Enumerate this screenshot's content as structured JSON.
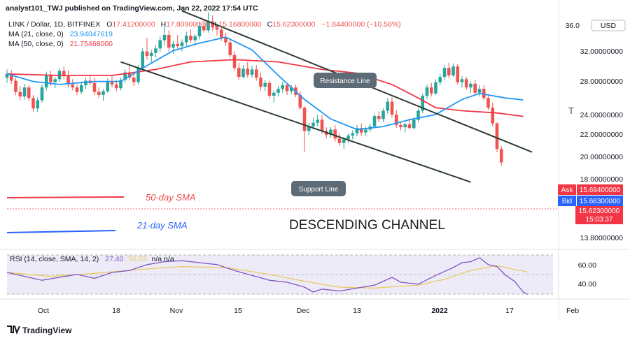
{
  "header": {
    "attribution": "analyst101_TWJ published on TradingView.com, Jan 22, 2022 17:54 UTC",
    "symbol": "LINK / Dollar, 1D, BITFINEX",
    "ohlc": [
      {
        "k": "O",
        "v": "17.41200000"
      },
      {
        "k": "H",
        "v": "17.80900000"
      },
      {
        "k": "L",
        "v": "15.16800000"
      },
      {
        "k": "C",
        "v": "15.62300000"
      },
      {
        "k": "",
        "v": "−1.84400000 (−10.56%)"
      }
    ],
    "ma21_label": "MA (21, close, 0)",
    "ma21_value": "23.94047619",
    "ma50_label": "MA (50, close, 0)",
    "ma50_value": "21.75468000"
  },
  "price_axis": {
    "currency": "USD",
    "top_tick": "36.0",
    "ticks": [
      "32.00000000",
      "28.00000000",
      "24.00000000",
      "22.00000000",
      "20.00000000",
      "18.00000000",
      "13.80000000"
    ]
  },
  "price_tags": {
    "ask_label": "Ask",
    "ask_value": "15.69400000",
    "bid_label": "Bid",
    "bid_value": "15.66300000",
    "last_value": "15.62300000",
    "countdown": "15:03:37"
  },
  "annotations": {
    "resistance": "Resistance Line",
    "support": "Support Line",
    "sma50": "50-day SMA",
    "sma21": "21-day SMA",
    "channel": "DESCENDING CHANNEL",
    "edge_text": "T"
  },
  "rsi": {
    "label": "RSI (14, close, SMA, 14, 2)",
    "value": "27.40",
    "value2": "50.53",
    "na": "n/a n/a",
    "ticks": [
      "60.00",
      "40.00"
    ]
  },
  "time_axis": [
    "Oct",
    "18",
    "Nov",
    "15",
    "Dec",
    "13",
    "2022",
    "17",
    "Feb"
  ],
  "footer": {
    "brand": "TradingView"
  },
  "colors": {
    "up": "#26a69a",
    "down": "#ef5350",
    "ma21": "#2196f3",
    "ma50": "#f23645",
    "rsi": "#7e57c2",
    "rsi_sma": "#e8c85a",
    "trendline": "#2e3d34",
    "tag_red": "#f23645",
    "tag_blue": "#2962ff"
  },
  "chart_data": [
    {
      "type": "candlestick",
      "title": "LINK / Dollar, 1D, BITFINEX",
      "ylim": [
        12.5,
        36.5
      ],
      "candles": [
        [
          26.9,
          28.0,
          26.2,
          27.4
        ],
        [
          27.4,
          27.9,
          26.1,
          26.5
        ],
        [
          26.5,
          26.9,
          24.6,
          25.0
        ],
        [
          25.0,
          25.8,
          23.9,
          24.4
        ],
        [
          24.4,
          26.1,
          24.0,
          25.6
        ],
        [
          25.6,
          25.9,
          23.8,
          24.2
        ],
        [
          24.2,
          24.6,
          22.4,
          22.8
        ],
        [
          22.8,
          24.3,
          22.3,
          23.9
        ],
        [
          23.9,
          26.0,
          23.6,
          25.6
        ],
        [
          25.6,
          27.7,
          25.2,
          27.2
        ],
        [
          27.2,
          27.8,
          25.8,
          26.3
        ],
        [
          26.3,
          27.0,
          25.5,
          26.7
        ],
        [
          26.7,
          28.2,
          26.3,
          27.8
        ],
        [
          27.8,
          28.4,
          26.7,
          27.1
        ],
        [
          27.1,
          27.9,
          25.6,
          26.0
        ],
        [
          26.0,
          26.7,
          25.2,
          25.6
        ],
        [
          25.6,
          26.0,
          24.6,
          25.0
        ],
        [
          25.0,
          26.3,
          24.7,
          25.9
        ],
        [
          25.9,
          26.9,
          25.4,
          26.5
        ],
        [
          26.5,
          27.2,
          25.9,
          26.2
        ],
        [
          26.2,
          26.9,
          24.6,
          25.0
        ],
        [
          25.0,
          25.6,
          24.2,
          24.6
        ],
        [
          24.6,
          25.4,
          23.8,
          25.1
        ],
        [
          25.1,
          26.8,
          24.9,
          26.4
        ],
        [
          26.4,
          27.2,
          25.6,
          26.0
        ],
        [
          26.0,
          26.6,
          25.1,
          25.5
        ],
        [
          25.5,
          26.9,
          25.2,
          26.6
        ],
        [
          26.6,
          28.0,
          26.2,
          27.6
        ],
        [
          27.6,
          28.4,
          26.6,
          26.9
        ],
        [
          26.9,
          27.6,
          25.8,
          26.3
        ],
        [
          26.3,
          28.6,
          26.0,
          28.2
        ],
        [
          28.2,
          30.8,
          27.9,
          30.4
        ],
        [
          30.4,
          32.2,
          29.3,
          29.8
        ],
        [
          29.8,
          30.6,
          28.8,
          30.2
        ],
        [
          30.2,
          31.2,
          29.6,
          30.8
        ],
        [
          30.8,
          32.4,
          30.3,
          31.9
        ],
        [
          31.9,
          33.8,
          31.2,
          32.6
        ],
        [
          32.6,
          33.2,
          30.4,
          30.9
        ],
        [
          30.9,
          31.8,
          30.1,
          31.4
        ],
        [
          31.4,
          32.6,
          30.8,
          31.1
        ],
        [
          31.1,
          32.0,
          30.4,
          31.6
        ],
        [
          31.6,
          33.0,
          31.1,
          32.5
        ],
        [
          32.5,
          33.3,
          31.6,
          31.9
        ],
        [
          31.9,
          32.7,
          31.2,
          32.4
        ],
        [
          32.4,
          34.3,
          32.0,
          33.8
        ],
        [
          33.8,
          34.6,
          32.9,
          33.2
        ],
        [
          33.2,
          35.6,
          32.9,
          34.4
        ],
        [
          34.4,
          35.2,
          33.1,
          33.6
        ],
        [
          33.6,
          34.1,
          32.5,
          33.3
        ],
        [
          33.3,
          33.8,
          31.8,
          32.2
        ],
        [
          32.2,
          32.9,
          31.1,
          31.6
        ],
        [
          31.6,
          32.0,
          29.6,
          29.9
        ],
        [
          29.9,
          30.4,
          27.8,
          28.2
        ],
        [
          28.2,
          28.9,
          26.6,
          27.0
        ],
        [
          27.0,
          28.6,
          26.8,
          28.1
        ],
        [
          28.1,
          29.0,
          26.9,
          27.3
        ],
        [
          27.3,
          28.5,
          26.9,
          28.0
        ],
        [
          28.0,
          28.6,
          26.5,
          26.9
        ],
        [
          26.9,
          27.6,
          25.2,
          25.7
        ],
        [
          25.7,
          26.6,
          25.1,
          26.2
        ],
        [
          26.2,
          26.5,
          24.1,
          24.5
        ],
        [
          24.5,
          25.2,
          23.6,
          24.9
        ],
        [
          24.9,
          25.8,
          24.4,
          25.4
        ],
        [
          25.4,
          26.4,
          24.9,
          25.9
        ],
        [
          25.9,
          26.2,
          24.6,
          25.1
        ],
        [
          25.1,
          25.9,
          24.7,
          25.6
        ],
        [
          25.6,
          26.0,
          24.3,
          24.6
        ],
        [
          24.6,
          25.1,
          22.6,
          22.9
        ],
        [
          22.9,
          23.1,
          17.0,
          19.8
        ],
        [
          19.8,
          20.9,
          19.3,
          20.4
        ],
        [
          20.4,
          21.6,
          20.0,
          20.9
        ],
        [
          20.9,
          22.0,
          20.4,
          21.3
        ],
        [
          21.3,
          21.9,
          19.4,
          19.8
        ],
        [
          19.8,
          20.3,
          18.8,
          19.3
        ],
        [
          19.3,
          20.3,
          18.9,
          20.0
        ],
        [
          20.0,
          20.6,
          18.4,
          18.8
        ],
        [
          18.8,
          19.5,
          17.8,
          18.2
        ],
        [
          18.2,
          19.0,
          17.4,
          18.7
        ],
        [
          18.7,
          19.5,
          18.2,
          19.2
        ],
        [
          19.2,
          19.9,
          18.7,
          19.5
        ],
        [
          19.5,
          20.6,
          19.1,
          20.2
        ],
        [
          20.2,
          20.8,
          19.2,
          19.6
        ],
        [
          19.6,
          20.4,
          19.2,
          20.0
        ],
        [
          20.0,
          20.8,
          19.7,
          20.4
        ],
        [
          20.4,
          22.1,
          20.2,
          21.8
        ],
        [
          21.8,
          22.4,
          21.0,
          21.4
        ],
        [
          21.4,
          22.8,
          21.0,
          22.5
        ],
        [
          22.5,
          24.2,
          22.1,
          23.7
        ],
        [
          23.7,
          24.3,
          21.6,
          22.0
        ],
        [
          22.0,
          22.6,
          20.2,
          20.6
        ],
        [
          20.6,
          21.1,
          19.9,
          20.3
        ],
        [
          20.3,
          20.9,
          19.6,
          20.7
        ],
        [
          20.7,
          21.5,
          20.0,
          20.2
        ],
        [
          20.2,
          21.6,
          20.0,
          21.3
        ],
        [
          21.3,
          22.8,
          21.0,
          22.5
        ],
        [
          22.5,
          24.8,
          22.2,
          24.5
        ],
        [
          24.5,
          26.0,
          24.1,
          25.6
        ],
        [
          25.6,
          26.2,
          24.4,
          24.8
        ],
        [
          24.8,
          26.7,
          24.6,
          26.3
        ],
        [
          26.3,
          27.4,
          25.9,
          27.0
        ],
        [
          27.0,
          28.6,
          26.6,
          28.2
        ],
        [
          28.2,
          28.9,
          26.8,
          27.2
        ],
        [
          27.2,
          28.8,
          27.0,
          28.4
        ],
        [
          28.4,
          28.7,
          26.0,
          26.3
        ],
        [
          26.3,
          27.1,
          25.6,
          26.7
        ],
        [
          26.7,
          27.0,
          25.3,
          25.6
        ],
        [
          25.6,
          26.4,
          24.9,
          26.1
        ],
        [
          26.1,
          26.6,
          24.6,
          24.9
        ],
        [
          24.9,
          25.9,
          24.4,
          25.4
        ],
        [
          25.4,
          25.9,
          23.9,
          24.2
        ],
        [
          24.2,
          24.7,
          22.6,
          22.9
        ],
        [
          22.9,
          23.6,
          20.4,
          20.8
        ],
        [
          20.8,
          21.0,
          17.0,
          17.41
        ],
        [
          17.41,
          17.81,
          15.17,
          15.62
        ]
      ],
      "ma21": [
        [
          0,
          27.4
        ],
        [
          6,
          26.4
        ],
        [
          12,
          26.0
        ],
        [
          20,
          26.4
        ],
        [
          26,
          26.4
        ],
        [
          32,
          28.5
        ],
        [
          38,
          30.5
        ],
        [
          44,
          31.5
        ],
        [
          50,
          32.3
        ],
        [
          56,
          30.6
        ],
        [
          62,
          27.2
        ],
        [
          68,
          24.0
        ],
        [
          74,
          21.4
        ],
        [
          80,
          20.0
        ],
        [
          86,
          20.4
        ],
        [
          92,
          21.3
        ],
        [
          98,
          22.0
        ],
        [
          104,
          24.0
        ],
        [
          108,
          24.8
        ],
        [
          114,
          24.2
        ],
        [
          118,
          23.94
        ]
      ],
      "ma50": [
        [
          0,
          27.4
        ],
        [
          12,
          27.2
        ],
        [
          24,
          27.2
        ],
        [
          34,
          28.0
        ],
        [
          42,
          29.0
        ],
        [
          52,
          29.3
        ],
        [
          62,
          29.0
        ],
        [
          72,
          28.0
        ],
        [
          80,
          27.5
        ],
        [
          88,
          26.0
        ],
        [
          94,
          24.2
        ],
        [
          98,
          22.9
        ],
        [
          104,
          22.5
        ],
        [
          112,
          22.2
        ],
        [
          118,
          21.75
        ]
      ],
      "resistance_line": [
        [
          40,
          35.8
        ],
        [
          120,
          17.0
        ]
      ],
      "support_line": [
        [
          26,
          29.0
        ],
        [
          106,
          13.0
        ]
      ]
    },
    {
      "type": "line",
      "title": "RSI (14, close, SMA, 14, 2)",
      "ylim": [
        20,
        70
      ],
      "rsi": [
        [
          0,
          50
        ],
        [
          4,
          46
        ],
        [
          8,
          42
        ],
        [
          12,
          45
        ],
        [
          16,
          48
        ],
        [
          20,
          44
        ],
        [
          24,
          50
        ],
        [
          28,
          52
        ],
        [
          32,
          58
        ],
        [
          36,
          61
        ],
        [
          40,
          62
        ],
        [
          44,
          60
        ],
        [
          48,
          58
        ],
        [
          52,
          52
        ],
        [
          56,
          47
        ],
        [
          60,
          42
        ],
        [
          64,
          40
        ],
        [
          68,
          35
        ],
        [
          70,
          30
        ],
        [
          72,
          33
        ],
        [
          76,
          31
        ],
        [
          80,
          34
        ],
        [
          84,
          37
        ],
        [
          88,
          45
        ],
        [
          90,
          40
        ],
        [
          94,
          38
        ],
        [
          98,
          47
        ],
        [
          102,
          55
        ],
        [
          104,
          60
        ],
        [
          106,
          61
        ],
        [
          108,
          65
        ],
        [
          110,
          58
        ],
        [
          112,
          56
        ],
        [
          114,
          47
        ],
        [
          116,
          41
        ],
        [
          118,
          30
        ],
        [
          119,
          27.4
        ]
      ],
      "rsi_sma": [
        [
          0,
          50
        ],
        [
          10,
          46
        ],
        [
          20,
          49
        ],
        [
          30,
          53
        ],
        [
          40,
          56
        ],
        [
          50,
          55
        ],
        [
          60,
          48
        ],
        [
          68,
          41
        ],
        [
          76,
          35
        ],
        [
          84,
          34
        ],
        [
          94,
          37
        ],
        [
          100,
          43
        ],
        [
          106,
          52
        ],
        [
          112,
          57
        ],
        [
          116,
          53
        ],
        [
          119,
          50.5
        ]
      ]
    }
  ]
}
